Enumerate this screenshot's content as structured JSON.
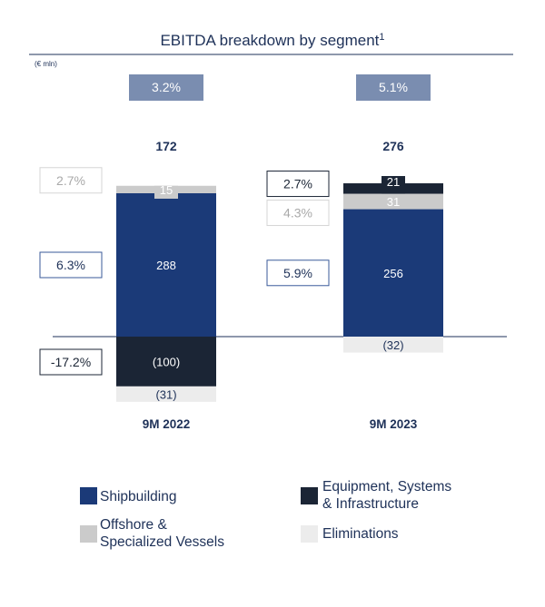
{
  "chart_data": {
    "type": "bar",
    "title": "EBITDA breakdown by segment",
    "title_footnote": "1",
    "unit": "(€ mln)",
    "categories": [
      "9M 2022",
      "9M 2023"
    ],
    "totals": [
      "172",
      "276"
    ],
    "group_margins": [
      "3.2%",
      "5.1%"
    ],
    "series": [
      {
        "name": "Shipbuilding",
        "color": "#1b3a78",
        "values": [
          288,
          256
        ],
        "labels": [
          "288",
          "256"
        ],
        "margins": [
          "6.3%",
          "5.9%"
        ]
      },
      {
        "name": "Offshore & Specialized Vessels",
        "color": "#cbcbcb",
        "values": [
          15,
          31
        ],
        "labels": [
          "15",
          "31"
        ],
        "margins": [
          "2.7%",
          "4.3%"
        ]
      },
      {
        "name": "Equipment, Systems & Infrastructure",
        "color": "#1b2535",
        "values": [
          -100,
          21
        ],
        "labels": [
          "(100)",
          "21"
        ],
        "margins": [
          "-17.2%",
          "2.7%"
        ]
      },
      {
        "name": "Eliminations",
        "color": "#ececec",
        "values": [
          -31,
          -32
        ],
        "labels": [
          "(31)",
          "(32)"
        ],
        "margins": [
          "",
          ""
        ]
      }
    ],
    "colors": {
      "accent": "#1e3158",
      "margin_box": "#7a8db0",
      "zero_line": "#1e3158"
    }
  },
  "legend": {
    "items": [
      {
        "lines": [
          "Shipbuilding"
        ],
        "color": "#1b3a78"
      },
      {
        "lines": [
          "Equipment, Systems",
          "& Infrastructure"
        ],
        "color": "#1b2535"
      },
      {
        "lines": [
          "Offshore &",
          "Specialized Vessels"
        ],
        "color": "#cbcbcb"
      },
      {
        "lines": [
          "Eliminations"
        ],
        "color": "#ececec"
      }
    ]
  }
}
